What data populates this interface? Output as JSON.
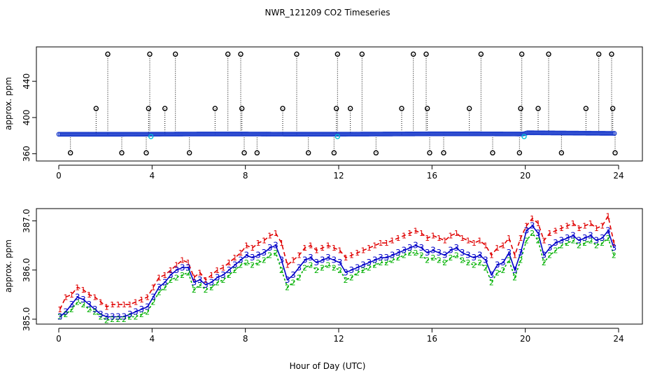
{
  "figure": {
    "title": "NWR_121209  CO2 Timeseries",
    "xlabel": "Hour of Day (UTC)"
  },
  "colors": {
    "axis": "#000000",
    "outlier": "#000000",
    "flagged": "#00bcd4",
    "series_blue": "#1f3fcc",
    "series_1": "#e00000",
    "series_2": "#00b000",
    "series_3": "#0000c8",
    "dotted": "#000000"
  },
  "chart_data": [
    {
      "type": "scatter",
      "ylabel": "approx. ppm",
      "xlim": [
        0,
        24
      ],
      "ylim": [
        352,
        478
      ],
      "xticks": [
        0,
        4,
        8,
        12,
        16,
        20,
        24
      ],
      "yticks": [
        360,
        400,
        440
      ],
      "baseline_series": [
        {
          "x": 0.0,
          "y": 381.5
        },
        {
          "x": 2.0,
          "y": 381.5
        },
        {
          "x": 4.0,
          "y": 381.6
        },
        {
          "x": 6.0,
          "y": 381.8
        },
        {
          "x": 8.0,
          "y": 381.8
        },
        {
          "x": 10.0,
          "y": 381.6
        },
        {
          "x": 12.0,
          "y": 381.6
        },
        {
          "x": 14.0,
          "y": 381.8
        },
        {
          "x": 16.0,
          "y": 382.0
        },
        {
          "x": 18.0,
          "y": 382.0
        },
        {
          "x": 19.9,
          "y": 381.8
        },
        {
          "x": 20.1,
          "y": 383.2
        },
        {
          "x": 22.0,
          "y": 382.8
        },
        {
          "x": 23.8,
          "y": 382.5
        }
      ],
      "outliers": [
        {
          "x": 0.5,
          "y": 361
        },
        {
          "x": 1.6,
          "y": 410
        },
        {
          "x": 2.1,
          "y": 470
        },
        {
          "x": 2.7,
          "y": 361
        },
        {
          "x": 3.75,
          "y": 361
        },
        {
          "x": 3.85,
          "y": 410
        },
        {
          "x": 3.9,
          "y": 470
        },
        {
          "x": 4.55,
          "y": 410
        },
        {
          "x": 5.0,
          "y": 470
        },
        {
          "x": 5.6,
          "y": 361
        },
        {
          "x": 6.7,
          "y": 410
        },
        {
          "x": 7.25,
          "y": 470
        },
        {
          "x": 7.8,
          "y": 470
        },
        {
          "x": 7.85,
          "y": 410
        },
        {
          "x": 7.95,
          "y": 361
        },
        {
          "x": 8.5,
          "y": 361
        },
        {
          "x": 9.6,
          "y": 410
        },
        {
          "x": 10.2,
          "y": 470
        },
        {
          "x": 10.7,
          "y": 361
        },
        {
          "x": 11.8,
          "y": 361
        },
        {
          "x": 11.9,
          "y": 410
        },
        {
          "x": 11.95,
          "y": 470
        },
        {
          "x": 12.5,
          "y": 410
        },
        {
          "x": 13.0,
          "y": 470
        },
        {
          "x": 13.6,
          "y": 361
        },
        {
          "x": 14.7,
          "y": 410
        },
        {
          "x": 15.2,
          "y": 470
        },
        {
          "x": 15.75,
          "y": 470
        },
        {
          "x": 15.8,
          "y": 410
        },
        {
          "x": 15.9,
          "y": 361
        },
        {
          "x": 16.5,
          "y": 361
        },
        {
          "x": 17.6,
          "y": 410
        },
        {
          "x": 18.1,
          "y": 470
        },
        {
          "x": 18.6,
          "y": 361
        },
        {
          "x": 19.75,
          "y": 361
        },
        {
          "x": 19.8,
          "y": 410
        },
        {
          "x": 19.85,
          "y": 470
        },
        {
          "x": 20.55,
          "y": 410
        },
        {
          "x": 21.0,
          "y": 470
        },
        {
          "x": 21.55,
          "y": 361
        },
        {
          "x": 22.6,
          "y": 410
        },
        {
          "x": 23.15,
          "y": 470
        },
        {
          "x": 23.7,
          "y": 470
        },
        {
          "x": 23.75,
          "y": 410
        },
        {
          "x": 23.85,
          "y": 361
        }
      ],
      "flagged": [
        {
          "x": 3.95,
          "y": 379
        },
        {
          "x": 11.95,
          "y": 379
        },
        {
          "x": 19.95,
          "y": 379
        }
      ]
    },
    {
      "type": "line",
      "ylabel": "approx. ppm",
      "xlim": [
        0,
        24
      ],
      "ylim": [
        384.9,
        387.25
      ],
      "xticks": [
        0,
        4,
        8,
        12,
        16,
        20,
        24
      ],
      "yticks": [
        385.0,
        386.0,
        387.0
      ],
      "series": [
        {
          "marker": "1",
          "x": [
            0.05,
            0.3,
            0.55,
            0.8,
            1.05,
            1.3,
            1.55,
            1.8,
            2.05,
            2.3,
            2.55,
            2.8,
            3.05,
            3.3,
            3.55,
            3.8,
            4.05,
            4.3,
            4.55,
            4.8,
            5.05,
            5.3,
            5.55,
            5.8,
            6.05,
            6.3,
            6.55,
            6.8,
            7.05,
            7.3,
            7.55,
            7.8,
            8.05,
            8.3,
            8.55,
            8.8,
            9.05,
            9.3,
            9.55,
            9.8,
            10.05,
            10.3,
            10.55,
            10.8,
            11.05,
            11.3,
            11.55,
            11.8,
            12.05,
            12.3,
            12.55,
            12.8,
            13.05,
            13.3,
            13.55,
            13.8,
            14.05,
            14.3,
            14.55,
            14.8,
            15.05,
            15.3,
            15.55,
            15.8,
            16.05,
            16.3,
            16.55,
            16.8,
            17.05,
            17.3,
            17.55,
            17.8,
            18.05,
            18.3,
            18.55,
            18.8,
            19.05,
            19.3,
            19.55,
            19.8,
            20.05,
            20.3,
            20.55,
            20.8,
            21.05,
            21.3,
            21.55,
            21.8,
            22.05,
            22.3,
            22.55,
            22.8,
            23.05,
            23.3,
            23.55,
            23.8
          ],
          "values": [
            385.2,
            385.45,
            385.5,
            385.65,
            385.6,
            385.5,
            385.45,
            385.35,
            385.25,
            385.3,
            385.3,
            385.3,
            385.3,
            385.35,
            385.4,
            385.45,
            385.65,
            385.85,
            385.9,
            386.0,
            386.1,
            386.2,
            386.15,
            385.85,
            385.95,
            385.8,
            385.9,
            386.0,
            386.05,
            386.15,
            386.25,
            386.35,
            386.5,
            386.45,
            386.55,
            386.6,
            386.7,
            386.75,
            386.55,
            386.1,
            386.2,
            386.3,
            386.45,
            386.5,
            386.4,
            386.45,
            386.5,
            386.45,
            386.4,
            386.25,
            386.3,
            386.35,
            386.4,
            386.45,
            386.5,
            386.55,
            386.55,
            386.6,
            386.65,
            386.7,
            386.75,
            386.8,
            386.75,
            386.65,
            386.7,
            386.65,
            386.6,
            386.7,
            386.75,
            386.65,
            386.6,
            386.55,
            386.6,
            386.5,
            386.3,
            386.45,
            386.5,
            386.65,
            386.3,
            386.65,
            386.9,
            387.05,
            386.95,
            386.6,
            386.75,
            386.8,
            386.85,
            386.9,
            386.95,
            386.85,
            386.9,
            386.95,
            386.85,
            386.9,
            387.1,
            386.55
          ]
        },
        {
          "marker": "2",
          "x": [
            0.05,
            0.3,
            0.55,
            0.8,
            1.05,
            1.3,
            1.55,
            1.8,
            2.05,
            2.3,
            2.55,
            2.8,
            3.05,
            3.3,
            3.55,
            3.8,
            4.05,
            4.3,
            4.55,
            4.8,
            5.05,
            5.3,
            5.55,
            5.8,
            6.05,
            6.3,
            6.55,
            6.8,
            7.05,
            7.3,
            7.55,
            7.8,
            8.05,
            8.3,
            8.55,
            8.8,
            9.05,
            9.3,
            9.55,
            9.8,
            10.05,
            10.3,
            10.55,
            10.8,
            11.05,
            11.3,
            11.55,
            11.8,
            12.05,
            12.3,
            12.55,
            12.8,
            13.05,
            13.3,
            13.55,
            13.8,
            14.05,
            14.3,
            14.55,
            14.8,
            15.05,
            15.3,
            15.55,
            15.8,
            16.05,
            16.3,
            16.55,
            16.8,
            17.05,
            17.3,
            17.55,
            17.8,
            18.05,
            18.3,
            18.55,
            18.8,
            19.05,
            19.3,
            19.55,
            19.8,
            20.05,
            20.3,
            20.55,
            20.8,
            21.05,
            21.3,
            21.55,
            21.8,
            22.05,
            22.3,
            22.55,
            22.8,
            23.05,
            23.3,
            23.55,
            23.8
          ],
          "values": [
            385.05,
            385.1,
            385.2,
            385.35,
            385.3,
            385.2,
            385.15,
            385.05,
            384.98,
            385.0,
            385.0,
            385.0,
            385.05,
            385.05,
            385.1,
            385.15,
            385.35,
            385.55,
            385.65,
            385.8,
            385.85,
            385.9,
            385.95,
            385.6,
            385.7,
            385.6,
            385.65,
            385.75,
            385.8,
            385.9,
            386.0,
            386.1,
            386.15,
            386.1,
            386.15,
            386.2,
            386.3,
            386.35,
            386.0,
            385.65,
            385.75,
            385.85,
            386.05,
            386.1,
            386.0,
            386.05,
            386.1,
            386.05,
            386.0,
            385.8,
            385.85,
            385.95,
            386.0,
            386.05,
            386.1,
            386.15,
            386.15,
            386.2,
            386.25,
            386.3,
            386.35,
            386.35,
            386.3,
            386.2,
            386.25,
            386.2,
            386.15,
            386.25,
            386.3,
            386.2,
            386.15,
            386.1,
            386.15,
            386.05,
            385.75,
            385.95,
            386.0,
            386.2,
            385.85,
            386.2,
            386.6,
            386.75,
            386.6,
            386.15,
            386.3,
            386.4,
            386.5,
            386.55,
            386.6,
            386.5,
            386.55,
            386.6,
            386.5,
            386.55,
            386.65,
            386.3
          ]
        },
        {
          "marker": "3",
          "x": [
            0.05,
            0.3,
            0.55,
            0.8,
            1.05,
            1.3,
            1.55,
            1.8,
            2.05,
            2.3,
            2.55,
            2.8,
            3.05,
            3.3,
            3.55,
            3.8,
            4.05,
            4.3,
            4.55,
            4.8,
            5.05,
            5.3,
            5.55,
            5.8,
            6.05,
            6.3,
            6.55,
            6.8,
            7.05,
            7.3,
            7.55,
            7.8,
            8.05,
            8.3,
            8.55,
            8.8,
            9.05,
            9.3,
            9.55,
            9.8,
            10.05,
            10.3,
            10.55,
            10.8,
            11.05,
            11.3,
            11.55,
            11.8,
            12.05,
            12.3,
            12.55,
            12.8,
            13.05,
            13.3,
            13.55,
            13.8,
            14.05,
            14.3,
            14.55,
            14.8,
            15.05,
            15.3,
            15.55,
            15.8,
            16.05,
            16.3,
            16.55,
            16.8,
            17.05,
            17.3,
            17.55,
            17.8,
            18.05,
            18.3,
            18.55,
            18.8,
            19.05,
            19.3,
            19.55,
            19.8,
            20.05,
            20.3,
            20.55,
            20.8,
            21.05,
            21.3,
            21.55,
            21.8,
            22.05,
            22.3,
            22.55,
            22.8,
            23.05,
            23.3,
            23.55,
            23.8
          ],
          "values": [
            385.05,
            385.15,
            385.3,
            385.45,
            385.4,
            385.3,
            385.2,
            385.1,
            385.05,
            385.05,
            385.05,
            385.05,
            385.1,
            385.15,
            385.2,
            385.25,
            385.45,
            385.65,
            385.75,
            385.9,
            386.0,
            386.05,
            386.05,
            385.75,
            385.8,
            385.7,
            385.75,
            385.85,
            385.9,
            386.0,
            386.1,
            386.2,
            386.3,
            386.25,
            386.3,
            386.35,
            386.45,
            386.5,
            386.2,
            385.8,
            385.9,
            386.05,
            386.2,
            386.25,
            386.15,
            386.2,
            386.25,
            386.2,
            386.15,
            385.95,
            386.0,
            386.05,
            386.1,
            386.15,
            386.2,
            386.25,
            386.25,
            386.3,
            386.35,
            386.4,
            386.45,
            386.5,
            386.45,
            386.35,
            386.4,
            386.35,
            386.3,
            386.4,
            386.45,
            386.35,
            386.3,
            386.25,
            386.3,
            386.2,
            385.9,
            386.1,
            386.15,
            386.35,
            386.0,
            386.35,
            386.8,
            386.9,
            386.75,
            386.3,
            386.45,
            386.55,
            386.6,
            386.65,
            386.7,
            386.6,
            386.65,
            386.7,
            386.6,
            386.65,
            386.8,
            386.45
          ]
        }
      ]
    }
  ]
}
